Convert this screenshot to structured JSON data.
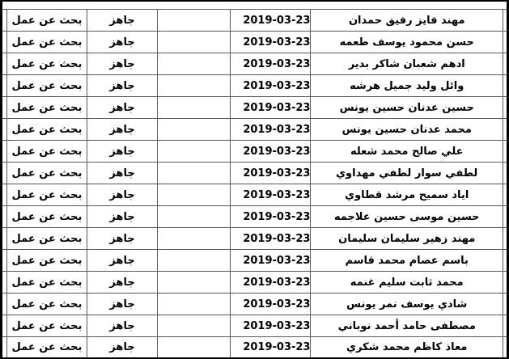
{
  "table": {
    "description_labels": {
      "status_label": "بحث عن عمل",
      "availability_label": "جاهز",
      "date_value": "2019-03-23"
    },
    "rows": [
      {
        "name": "مهند فايز رفيق حمدان",
        "date": "2019-03-23",
        "notes": "",
        "availability": "جاهز",
        "status": "بحث عن عمل"
      },
      {
        "name": "حسن محمود يوسف طعمه",
        "date": "2019-03-23",
        "notes": "",
        "availability": "جاهز",
        "status": "بحث عن عمل"
      },
      {
        "name": "ادهم شعبان شاكر بدير",
        "date": "2019-03-23",
        "notes": "",
        "availability": "جاهز",
        "status": "بحث عن عمل"
      },
      {
        "name": "وائل وليد جميل هرشه",
        "date": "2019-03-23",
        "notes": "",
        "availability": "جاهز",
        "status": "بحث عن عمل"
      },
      {
        "name": "حسين عدنان حسين يونس",
        "date": "2019-03-23",
        "notes": "",
        "availability": "جاهز",
        "status": "بحث عن عمل"
      },
      {
        "name": "محمد عدنان حسين يونس",
        "date": "2019-03-23",
        "notes": "",
        "availability": "جاهز",
        "status": "بحث عن عمل"
      },
      {
        "name": "علي صالح محمد شعله",
        "date": "2019-03-23",
        "notes": "",
        "availability": "جاهز",
        "status": "بحث عن عمل"
      },
      {
        "name": "لطفي سوار لطفي مهداوي",
        "date": "2019-03-23",
        "notes": "",
        "availability": "جاهز",
        "status": "بحث عن عمل"
      },
      {
        "name": "اياد سميح مرشد قطاوي",
        "date": "2019-03-23",
        "notes": "",
        "availability": "جاهز",
        "status": "بحث عن عمل"
      },
      {
        "name": "حسين موسى حسين علاجمه",
        "date": "2019-03-23",
        "notes": "",
        "availability": "جاهز",
        "status": "بحث عن عمل"
      },
      {
        "name": "مهند زهير سليمان سليمان",
        "date": "2019-03-23",
        "notes": "",
        "availability": "جاهز",
        "status": "بحث عن عمل"
      },
      {
        "name": "باسم عصام محمد قاسم",
        "date": "2019-03-23",
        "notes": "",
        "availability": "جاهز",
        "status": "بحث عن عمل"
      },
      {
        "name": "محمد ثابت سليم غنمه",
        "date": "2019-03-23",
        "notes": "",
        "availability": "جاهز",
        "status": "بحث عن عمل"
      },
      {
        "name": "شادي يوسف نمر يونس",
        "date": "2019-03-23",
        "notes": "",
        "availability": "جاهز",
        "status": "بحث عن عمل"
      },
      {
        "name": "مصطفى حامد أحمد نوباني",
        "date": "2019-03-23",
        "notes": "",
        "availability": "جاهز",
        "status": "بحث عن عمل"
      },
      {
        "name": "معاذ كاظم محمد شكري",
        "date": "2019-03-23",
        "notes": "",
        "availability": "جاهز",
        "status": "بحث عن عمل"
      }
    ]
  },
  "colors": {
    "background": "#ffffff",
    "text": "#000000",
    "grid_line": "#58585a",
    "outer_border": "#000000"
  }
}
